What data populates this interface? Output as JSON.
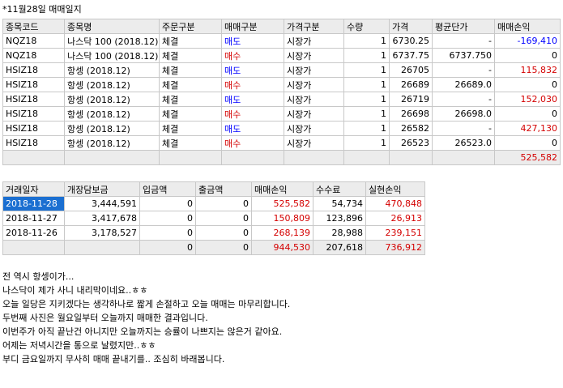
{
  "title": "*11월28일 매매일지",
  "trade_table": {
    "headers": [
      "종목코드",
      "종목명",
      "주문구분",
      "매매구분",
      "가격구분",
      "수량",
      "가격",
      "평균단가",
      "매매손익"
    ],
    "rows": [
      {
        "code": "NQZ18",
        "name": "나스닥 100 (2018.12)",
        "order": "체결",
        "side": "매도",
        "side_color": "#0000ff",
        "ptype": "시장가",
        "qty": "1",
        "price": "6730.25",
        "avg": "-",
        "pnl": "-169,410",
        "pnl_color": "#0000ff"
      },
      {
        "code": "NQZ18",
        "name": "나스닥 100 (2018.12)",
        "order": "체결",
        "side": "매수",
        "side_color": "#d40000",
        "ptype": "시장가",
        "qty": "1",
        "price": "6737.75",
        "avg": "6737.750",
        "pnl": "0",
        "pnl_color": "#000000"
      },
      {
        "code": "HSIZ18",
        "name": "항셍 (2018.12)",
        "order": "체결",
        "side": "매도",
        "side_color": "#0000ff",
        "ptype": "시장가",
        "qty": "1",
        "price": "26705",
        "avg": "-",
        "pnl": "115,832",
        "pnl_color": "#d40000"
      },
      {
        "code": "HSIZ18",
        "name": "항셍 (2018.12)",
        "order": "체결",
        "side": "매수",
        "side_color": "#d40000",
        "ptype": "시장가",
        "qty": "1",
        "price": "26689",
        "avg": "26689.0",
        "pnl": "0",
        "pnl_color": "#000000"
      },
      {
        "code": "HSIZ18",
        "name": "항셍 (2018.12)",
        "order": "체결",
        "side": "매도",
        "side_color": "#0000ff",
        "ptype": "시장가",
        "qty": "1",
        "price": "26719",
        "avg": "-",
        "pnl": "152,030",
        "pnl_color": "#d40000"
      },
      {
        "code": "HSIZ18",
        "name": "항셍 (2018.12)",
        "order": "체결",
        "side": "매수",
        "side_color": "#d40000",
        "ptype": "시장가",
        "qty": "1",
        "price": "26698",
        "avg": "26698.0",
        "pnl": "0",
        "pnl_color": "#000000"
      },
      {
        "code": "HSIZ18",
        "name": "항셍 (2018.12)",
        "order": "체결",
        "side": "매도",
        "side_color": "#0000ff",
        "ptype": "시장가",
        "qty": "1",
        "price": "26582",
        "avg": "-",
        "pnl": "427,130",
        "pnl_color": "#d40000"
      },
      {
        "code": "HSIZ18",
        "name": "항셍 (2018.12)",
        "order": "체결",
        "side": "매수",
        "side_color": "#d40000",
        "ptype": "시장가",
        "qty": "1",
        "price": "26523",
        "avg": "26523.0",
        "pnl": "0",
        "pnl_color": "#000000"
      }
    ],
    "total_pnl": "525,582"
  },
  "daily_table": {
    "headers": [
      "거래일자",
      "개장담보금",
      "입금액",
      "출금액",
      "매매손익",
      "수수료",
      "실현손익"
    ],
    "rows": [
      {
        "date": "2018-11-28",
        "margin": "3,444,591",
        "deposit": "0",
        "withdraw": "0",
        "pnl": "525,582",
        "fee": "54,734",
        "realized": "470,848",
        "selected": true
      },
      {
        "date": "2018-11-27",
        "margin": "3,417,678",
        "deposit": "0",
        "withdraw": "0",
        "pnl": "150,809",
        "fee": "123,896",
        "realized": "26,913",
        "selected": false
      },
      {
        "date": "2018-11-26",
        "margin": "3,178,527",
        "deposit": "0",
        "withdraw": "0",
        "pnl": "268,139",
        "fee": "28,988",
        "realized": "239,151",
        "selected": false
      }
    ],
    "total": {
      "deposit": "0",
      "withdraw": "0",
      "pnl": "944,530",
      "fee": "207,618",
      "realized": "736,912"
    }
  },
  "notes": [
    "전 역시 항셍이가...",
    "나스닥이 제가 사니 내리막이네요..ㅎㅎ",
    "오늘 일당은 지키겠다는 생각하나로 짧게 손절하고 오늘 매매는 마무리합니다.",
    "두번째 사진은 월요일부터 오늘까지 매매한 결과입니다.",
    "이번주가 아직 끝난건 아니지만 오늘까지는 승률이 나쁘지는 않은거 같아요.",
    "어제는 저녁시간을 통으로 날렸지만..ㅎㅎ",
    "부디 금요일까지 무사히 매매 끝내기를.. 조심히 바래봅니다."
  ]
}
